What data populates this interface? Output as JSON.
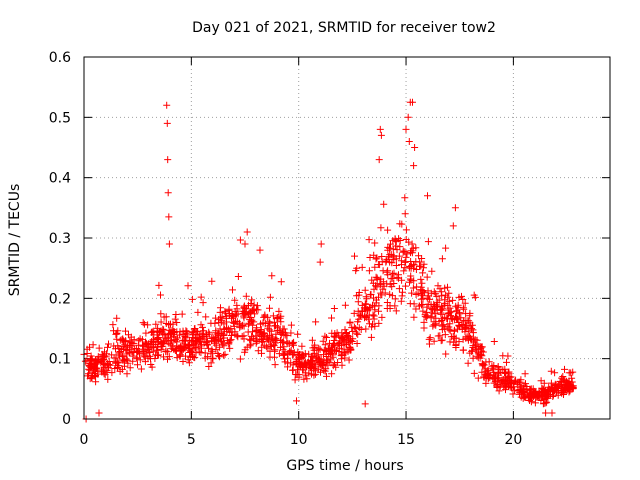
{
  "chart_data": {
    "type": "scatter",
    "title": "Day 021 of 2021, SRMTID for receiver tow2",
    "xlabel": "GPS time / hours",
    "ylabel": "SRMTID / TECUs",
    "xlim": [
      0,
      24.5
    ],
    "ylim": [
      0,
      0.6
    ],
    "xticks": [
      0,
      5,
      10,
      15,
      20
    ],
    "yticks": [
      0,
      0.1,
      0.2,
      0.3,
      0.4,
      0.5,
      0.6
    ],
    "xtick_labels": [
      "0",
      "5",
      "10",
      "15",
      "20"
    ],
    "ytick_labels": [
      "0",
      "0.1",
      "0.2",
      "0.3",
      "0.4",
      "0.5",
      "0.6"
    ],
    "grid": true,
    "marker": "+",
    "color": "#ff0000",
    "series": [
      {
        "name": "tow2",
        "data_range": [
          0,
          22.8
        ],
        "trend": [
          [
            0.0,
            0.09
          ],
          [
            0.5,
            0.085
          ],
          [
            1.0,
            0.09
          ],
          [
            1.5,
            0.11
          ],
          [
            2.0,
            0.11
          ],
          [
            2.5,
            0.11
          ],
          [
            3.0,
            0.11
          ],
          [
            3.5,
            0.13
          ],
          [
            4.0,
            0.14
          ],
          [
            4.5,
            0.12
          ],
          [
            5.0,
            0.12
          ],
          [
            5.5,
            0.13
          ],
          [
            6.0,
            0.13
          ],
          [
            6.5,
            0.15
          ],
          [
            7.0,
            0.16
          ],
          [
            7.5,
            0.16
          ],
          [
            8.0,
            0.15
          ],
          [
            8.5,
            0.14
          ],
          [
            9.0,
            0.14
          ],
          [
            9.5,
            0.12
          ],
          [
            10.0,
            0.09
          ],
          [
            10.5,
            0.09
          ],
          [
            11.0,
            0.1
          ],
          [
            11.5,
            0.11
          ],
          [
            12.0,
            0.12
          ],
          [
            12.5,
            0.14
          ],
          [
            13.0,
            0.17
          ],
          [
            13.5,
            0.22
          ],
          [
            14.0,
            0.24
          ],
          [
            14.5,
            0.26
          ],
          [
            15.0,
            0.27
          ],
          [
            15.5,
            0.23
          ],
          [
            16.0,
            0.18
          ],
          [
            16.5,
            0.17
          ],
          [
            17.0,
            0.17
          ],
          [
            17.5,
            0.16
          ],
          [
            18.0,
            0.14
          ],
          [
            18.5,
            0.1
          ],
          [
            19.0,
            0.07
          ],
          [
            19.5,
            0.07
          ],
          [
            20.0,
            0.06
          ],
          [
            20.5,
            0.045
          ],
          [
            21.0,
            0.04
          ],
          [
            21.5,
            0.04
          ],
          [
            22.0,
            0.05
          ],
          [
            22.5,
            0.055
          ],
          [
            22.8,
            0.055
          ]
        ],
        "peaks": [
          [
            3.85,
            0.52
          ],
          [
            3.88,
            0.49
          ],
          [
            3.9,
            0.43
          ],
          [
            3.92,
            0.375
          ],
          [
            3.95,
            0.335
          ],
          [
            3.98,
            0.29
          ],
          [
            7.6,
            0.31
          ],
          [
            7.5,
            0.29
          ],
          [
            8.2,
            0.28
          ],
          [
            11.05,
            0.29
          ],
          [
            11.0,
            0.26
          ],
          [
            12.6,
            0.27
          ],
          [
            12.7,
            0.25
          ],
          [
            13.8,
            0.48
          ],
          [
            13.85,
            0.47
          ],
          [
            13.75,
            0.43
          ],
          [
            15.2,
            0.525
          ],
          [
            15.3,
            0.525
          ],
          [
            15.1,
            0.5
          ],
          [
            15.0,
            0.48
          ],
          [
            15.15,
            0.46
          ],
          [
            15.4,
            0.45
          ],
          [
            15.35,
            0.42
          ],
          [
            16.0,
            0.37
          ],
          [
            17.3,
            0.35
          ],
          [
            17.2,
            0.32
          ]
        ],
        "minima": [
          [
            0.1,
            0.0
          ],
          [
            0.7,
            0.01
          ],
          [
            9.9,
            0.03
          ],
          [
            13.1,
            0.025
          ],
          [
            21.8,
            0.01
          ],
          [
            21.5,
            0.01
          ]
        ]
      }
    ]
  }
}
